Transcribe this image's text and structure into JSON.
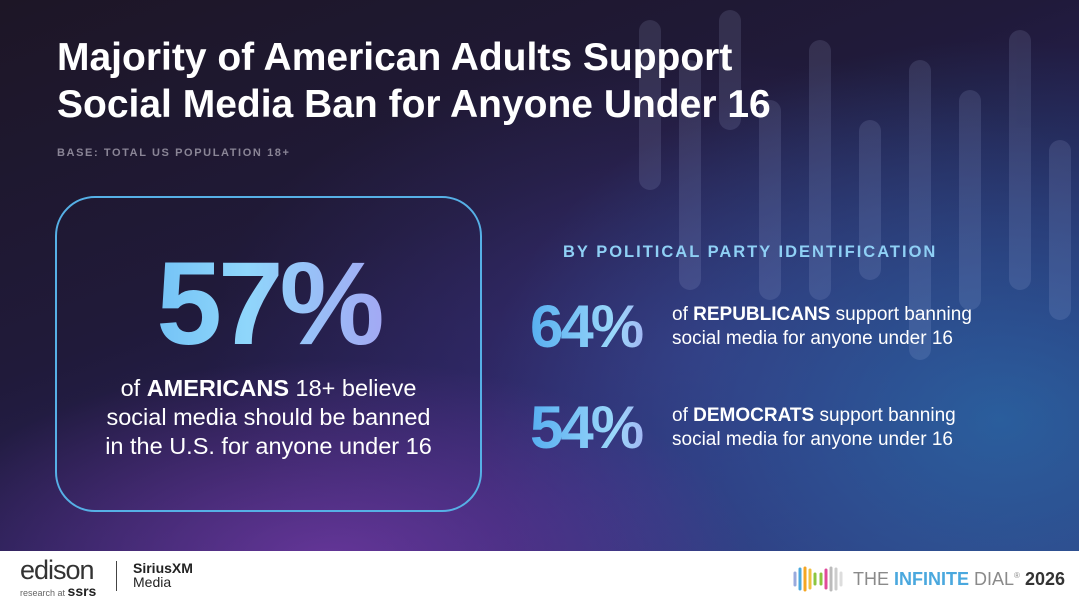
{
  "title_lines": [
    "Majority of American Adults Support",
    "Social Media Ban for Anyone Under 16"
  ],
  "base": "BASE: TOTAL US POPULATION 18+",
  "main_stat": {
    "value": "57%",
    "pre": "of ",
    "bold": "AMERICANS",
    "post": " 18+ believe",
    "line2": "social media should be banned",
    "line3": "in the U.S. for anyone under 16"
  },
  "party": {
    "heading": "BY POLITICAL PARTY IDENTIFICATION",
    "items": [
      {
        "value": "64%",
        "pre": "of ",
        "bold": "REPUBLICANS",
        "post": " support banning",
        "line2": "social media for anyone under 16"
      },
      {
        "value": "54%",
        "pre": "of ",
        "bold": "DEMOCRATS",
        "post": " support banning",
        "line2": "social media for anyone under 16"
      }
    ]
  },
  "footer": {
    "edison": "edison",
    "edison_sub": "research at ",
    "ssrs": "ssrs",
    "siriusxm": "SiriusXM",
    "media": "Media",
    "dial_pre": "THE ",
    "dial_blue": "INFINITE",
    "dial_post": " DIAL",
    "reg": "®",
    "year": "2026"
  },
  "colors": {
    "accent_blue": "#56b0e6",
    "accent_purple": "#b088ee"
  }
}
